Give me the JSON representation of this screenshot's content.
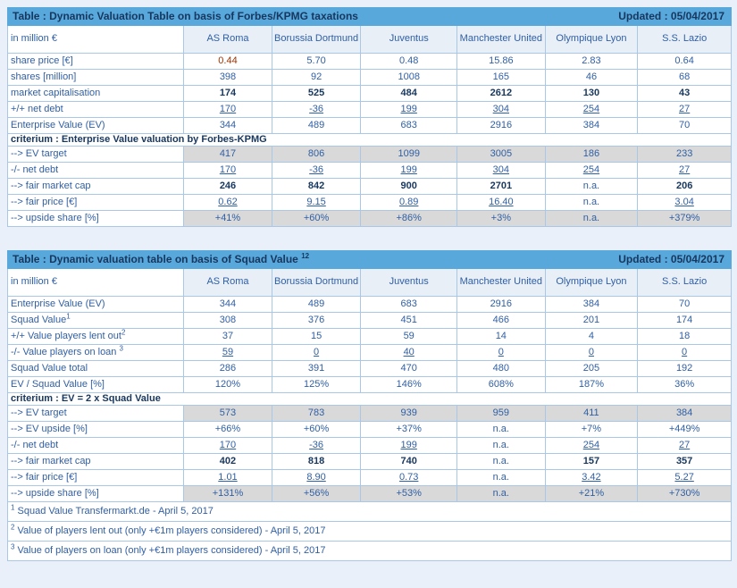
{
  "colors": {
    "page_bg": "#E9F0F9",
    "title_bar": "#58A8DC",
    "navy": "#17375E",
    "text": "#2F5FA5",
    "grid": "#A9C7E7",
    "outer": "#8FB6DA",
    "head_bg": "#E9EFF7",
    "gray": "#D9D9D9",
    "red": "#993300"
  },
  "chart_data": [
    {
      "type": "table",
      "title": "Table : Dynamic Valuation Table on basis of Forbes/KPMG taxations",
      "updated": "Updated : 05/04/2017",
      "corner_label": "in million €",
      "columns": [
        "AS Roma",
        "Borussia Dortmund",
        "Juventus",
        "Manchester United",
        "Olympique Lyon",
        "S.S. Lazio"
      ],
      "rows": [
        {
          "label": "share price [€]",
          "type": "normal",
          "red": [
            0
          ],
          "values": [
            "0.44",
            "5.70",
            "0.48",
            "15.86",
            "2.83",
            "0.64"
          ]
        },
        {
          "label": "shares [million]",
          "type": "normal",
          "values": [
            "398",
            "92",
            "1008",
            "165",
            "46",
            "68"
          ]
        },
        {
          "label": "market capitalisation",
          "type": "bold",
          "values": [
            "174",
            "525",
            "484",
            "2612",
            "130",
            "43"
          ]
        },
        {
          "label": "+/+ net debt",
          "type": "underline",
          "values": [
            "170",
            "-36",
            "199",
            "304",
            "254",
            "27"
          ]
        },
        {
          "label": "Enterprise Value (EV)",
          "type": "normal",
          "values": [
            "344",
            "489",
            "683",
            "2916",
            "384",
            "70"
          ]
        },
        {
          "label": "criterium : Enterprise Value valuation by Forbes-KPMG",
          "type": "criterium"
        },
        {
          "label": "--> EV target",
          "type": "gray",
          "values": [
            "417",
            "806",
            "1099",
            "3005",
            "186",
            "233"
          ]
        },
        {
          "label": "-/- net debt",
          "type": "underline",
          "values": [
            "170",
            "-36",
            "199",
            "304",
            "254",
            "27"
          ]
        },
        {
          "label": "--> fair market cap",
          "type": "bold",
          "values": [
            "246",
            "842",
            "900",
            "2701",
            "n.a.",
            "206"
          ]
        },
        {
          "label": "--> fair price [€]",
          "type": "underline",
          "values": [
            "0.62",
            "9.15",
            "0.89",
            "16.40",
            "n.a.",
            "3.04"
          ]
        },
        {
          "label": "--> upside share [%]",
          "type": "gray",
          "values": [
            "+41%",
            "+60%",
            "+86%",
            "+3%",
            "n.a.",
            "+379%"
          ]
        }
      ]
    },
    {
      "type": "table",
      "title": "Table : Dynamic valuation table on basis of Squad Value",
      "title_sup": "12",
      "updated": "Updated : 05/04/2017",
      "corner_label": "in million €",
      "columns": [
        "AS Roma",
        "Borussia Dortmund",
        "Juventus",
        "Manchester United",
        "Olympique Lyon",
        "S.S. Lazio"
      ],
      "rows": [
        {
          "label": "Enterprise Value (EV)",
          "type": "normal",
          "values": [
            "344",
            "489",
            "683",
            "2916",
            "384",
            "70"
          ]
        },
        {
          "label": "Squad Value",
          "label_sup": "1",
          "type": "normal",
          "values": [
            "308",
            "376",
            "451",
            "466",
            "201",
            "174"
          ]
        },
        {
          "label": "+/+ Value players lent out",
          "label_sup": "2",
          "type": "normal",
          "values": [
            "37",
            "15",
            "59",
            "14",
            "4",
            "18"
          ]
        },
        {
          "label": "-/- Value players on loan ",
          "label_sup": "3",
          "type": "underline",
          "values": [
            "59",
            "0",
            "40",
            "0",
            "0",
            "0"
          ]
        },
        {
          "label": "Squad Value total",
          "type": "normal",
          "values": [
            "286",
            "391",
            "470",
            "480",
            "205",
            "192"
          ]
        },
        {
          "label": "EV / Squad Value [%]",
          "type": "normal",
          "values": [
            "120%",
            "125%",
            "146%",
            "608%",
            "187%",
            "36%"
          ]
        },
        {
          "label": "criterium : EV = 2 x Squad Value",
          "type": "criterium"
        },
        {
          "label": "--> EV target",
          "type": "gray",
          "values": [
            "573",
            "783",
            "939",
            "959",
            "411",
            "384"
          ]
        },
        {
          "label": "--> EV upside [%]",
          "type": "normal",
          "values": [
            "+66%",
            "+60%",
            "+37%",
            "n.a.",
            "+7%",
            "+449%"
          ]
        },
        {
          "label": "-/- net debt",
          "type": "underline",
          "values": [
            "170",
            "-36",
            "199",
            "n.a.",
            "254",
            "27"
          ]
        },
        {
          "label": "--> fair market cap",
          "type": "bold",
          "values": [
            "402",
            "818",
            "740",
            "n.a.",
            "157",
            "357"
          ]
        },
        {
          "label": "--> fair price [€]",
          "type": "underline",
          "values": [
            "1.01",
            "8.90",
            "0.73",
            "n.a.",
            "3.42",
            "5.27"
          ]
        },
        {
          "label": "--> upside share [%]",
          "type": "gray",
          "values": [
            "+131%",
            "+56%",
            "+53%",
            "n.a.",
            "+21%",
            "+730%"
          ]
        }
      ],
      "footnotes": [
        {
          "sup": "1",
          "text": "Squad Value Transfermarkt.de - April 5, 2017"
        },
        {
          "sup": "2",
          "text": "Value of players lent out (only +€1m players considered) - April 5, 2017"
        },
        {
          "sup": "3",
          "text": "Value of players on loan (only +€1m players considered) - April 5, 2017"
        }
      ]
    }
  ]
}
